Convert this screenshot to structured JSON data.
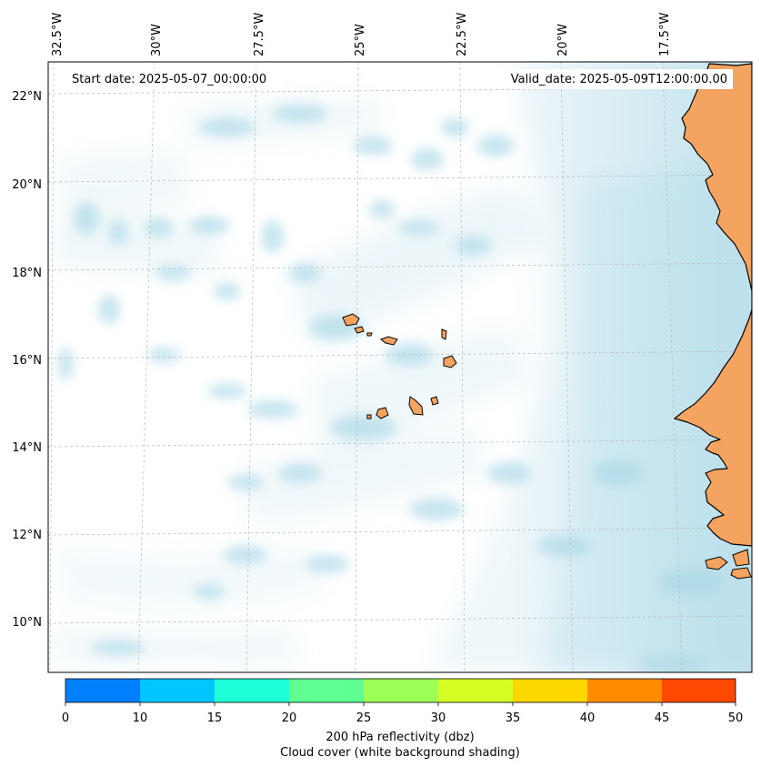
{
  "map": {
    "start_date": "Start date: 2025-05-07_00:00:00",
    "valid_date": "Valid_date: 2025-05-09T12:00:00.00",
    "lon_labels": [
      "32.5°W",
      "30°W",
      "27.5°W",
      "25°W",
      "22.5°W",
      "20°W",
      "17.5°W"
    ],
    "lat_labels": [
      "22°N",
      "20°N",
      "18°N",
      "16°N",
      "14°N",
      "12°N",
      "10°N"
    ],
    "colors": {
      "cloud": "#a9d7e6",
      "land": "#f4a460",
      "coast": "#000000",
      "grid": "#b0b0b0"
    }
  },
  "colorbar": {
    "ticks": [
      "0",
      "10",
      "15",
      "20",
      "25",
      "30",
      "35",
      "40",
      "45",
      "50"
    ],
    "colors": [
      "#007fff",
      "#00c6ff",
      "#1fffd8",
      "#5fff92",
      "#9bff55",
      "#d5ff22",
      "#ffd700",
      "#ff8c00",
      "#ff4800"
    ],
    "label_line1": "200 hPa reflectivity (dbz)",
    "label_line2": "Cloud cover (white background shading)"
  }
}
